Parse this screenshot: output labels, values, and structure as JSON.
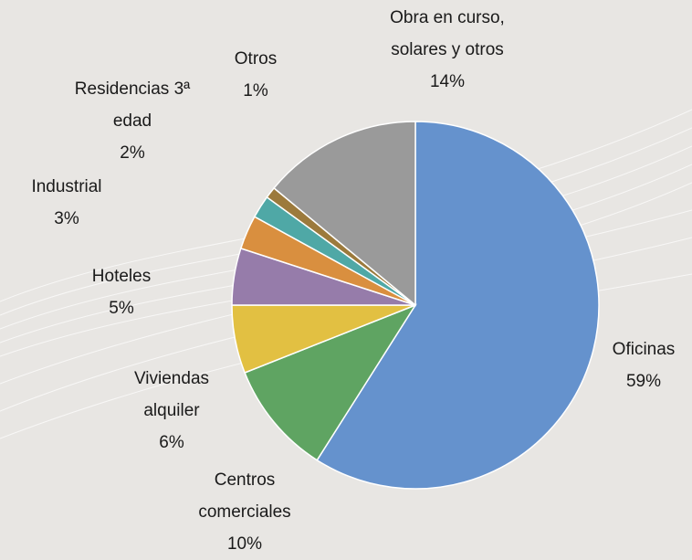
{
  "chart_data": {
    "type": "pie",
    "categories": [
      "Oficinas",
      "Centros comerciales",
      "Viviendas alquiler",
      "Hoteles",
      "Industrial",
      "Residencias 3ª edad",
      "Otros",
      "Obra en curso, solares y otros"
    ],
    "values": [
      59,
      10,
      6,
      5,
      3,
      2,
      1,
      14
    ],
    "value_labels": [
      "59%",
      "10%",
      "6%",
      "5%",
      "3%",
      "2%",
      "1%",
      "14%"
    ],
    "colors": [
      "#6592cd",
      "#5fa462",
      "#e2c042",
      "#967caa",
      "#d98f3f",
      "#4fa8a6",
      "#9c7a3c",
      "#9a9a9a"
    ]
  }
}
